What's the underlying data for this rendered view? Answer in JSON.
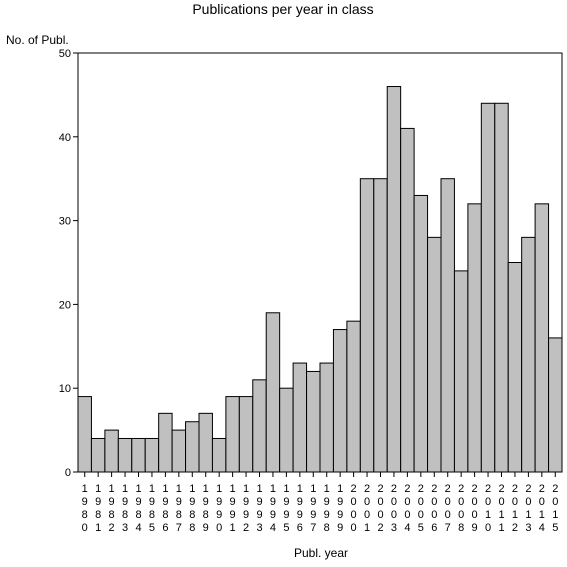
{
  "chart_data": {
    "type": "bar",
    "title": "Publications per year in class",
    "ylabel": "No. of Publ.",
    "xlabel": "Publ. year",
    "ylim": [
      0,
      50
    ],
    "yticks": [
      0,
      10,
      20,
      30,
      40,
      50
    ],
    "grid": false,
    "bar_color": "#c0c0c0",
    "categories": [
      "1980",
      "1981",
      "1982",
      "1983",
      "1984",
      "1985",
      "1986",
      "1987",
      "1988",
      "1989",
      "1990",
      "1991",
      "1992",
      "1993",
      "1994",
      "1995",
      "1996",
      "1997",
      "1998",
      "1999",
      "2000",
      "2001",
      "2002",
      "2003",
      "2004",
      "2005",
      "2006",
      "2007",
      "2008",
      "2009",
      "2010",
      "2011",
      "2012",
      "2013",
      "2014",
      "2015"
    ],
    "values": [
      9,
      4,
      5,
      4,
      4,
      4,
      7,
      5,
      6,
      7,
      4,
      9,
      9,
      11,
      19,
      10,
      13,
      12,
      13,
      17,
      18,
      35,
      35,
      46,
      41,
      33,
      28,
      35,
      24,
      32,
      44,
      44,
      25,
      28,
      32,
      16
    ]
  }
}
